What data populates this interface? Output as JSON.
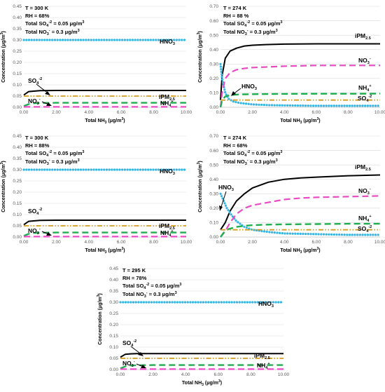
{
  "chart_data": [
    {
      "type": "line",
      "annotations": [
        "T = 300 K",
        "RH = 68%",
        "Total SO4-2 = 0.05 μg/m3",
        "Total NO3- = 0.3 μg/m3"
      ],
      "xlabel": "Total NH3 (μg/m3)",
      "ylabel": "Concentration (μg/m3)",
      "xlim": [
        0,
        10
      ],
      "ylim": [
        0,
        0.45
      ],
      "xticks": [
        "0.00",
        "2.00",
        "4.00",
        "6.00",
        "8.00",
        "10.00"
      ],
      "yticks": [
        "0.00",
        "0.05",
        "0.10",
        "0.15",
        "0.20",
        "0.25",
        "0.30",
        "0.35",
        "0.40",
        "0.45"
      ],
      "series": [
        {
          "name": "iPM2.5",
          "x": [
            0,
            0.3,
            0.6,
            1,
            2,
            4,
            6,
            8,
            10
          ],
          "values": [
            0.055,
            0.07,
            0.072,
            0.074,
            0.075,
            0.075,
            0.075,
            0.075,
            0.075
          ]
        },
        {
          "name": "HNO3",
          "x": [
            0,
            2,
            4,
            6,
            8,
            10
          ],
          "values": [
            0.3,
            0.3,
            0.3,
            0.3,
            0.3,
            0.3
          ]
        },
        {
          "name": "SO4-2",
          "x": [
            0,
            2,
            4,
            6,
            8,
            10
          ],
          "values": [
            0.05,
            0.05,
            0.05,
            0.05,
            0.05,
            0.05
          ]
        },
        {
          "name": "NH4+",
          "x": [
            0,
            0.3,
            0.6,
            1,
            2,
            4,
            6,
            8,
            10
          ],
          "values": [
            0.005,
            0.014,
            0.018,
            0.019,
            0.02,
            0.02,
            0.02,
            0.02,
            0.02
          ]
        },
        {
          "name": "NO3-",
          "x": [
            0,
            2,
            4,
            6,
            8,
            10
          ],
          "values": [
            0.002,
            0.002,
            0.002,
            0.002,
            0.002,
            0.002
          ]
        }
      ]
    },
    {
      "type": "line",
      "annotations": [
        "T = 274 K",
        "RH = 88 %",
        "Total SO4-2 = 0.05 μg/m3",
        "Total NO3- = 0.3 μg/m3"
      ],
      "xlabel": "Total NH3 (μg/m3)",
      "ylabel": "Concentration (μg/m3)",
      "xlim": [
        0,
        10
      ],
      "ylim": [
        0,
        0.7
      ],
      "xticks": [
        "0.00",
        "2.00",
        "4.00",
        "6.00",
        "8.00",
        "10.00"
      ],
      "yticks": [
        "0.00",
        "0.10",
        "0.20",
        "0.30",
        "0.40",
        "0.50",
        "0.60",
        "0.70"
      ],
      "series": [
        {
          "name": "iPM2.5",
          "x": [
            0,
            0.1,
            0.3,
            0.6,
            1,
            1.5,
            2,
            3,
            4,
            6,
            8,
            10
          ],
          "values": [
            0.05,
            0.22,
            0.34,
            0.39,
            0.41,
            0.425,
            0.43,
            0.435,
            0.438,
            0.44,
            0.44,
            0.44
          ]
        },
        {
          "name": "HNO3",
          "x": [
            0,
            0.1,
            0.3,
            0.5,
            0.8,
            1.2,
            2,
            3,
            4,
            6,
            8,
            10
          ],
          "values": [
            0.3,
            0.2,
            0.1,
            0.06,
            0.04,
            0.03,
            0.02,
            0.015,
            0.013,
            0.01,
            0.01,
            0.01
          ]
        },
        {
          "name": "NO3-",
          "x": [
            0,
            0.1,
            0.3,
            0.6,
            1,
            1.5,
            2,
            3,
            4,
            6,
            8,
            10
          ],
          "values": [
            0,
            0.1,
            0.2,
            0.24,
            0.26,
            0.27,
            0.275,
            0.28,
            0.285,
            0.29,
            0.29,
            0.29
          ]
        },
        {
          "name": "NH4+",
          "x": [
            0,
            0.1,
            0.3,
            0.6,
            1,
            1.5,
            2,
            3,
            4,
            6,
            8,
            10
          ],
          "values": [
            0,
            0.05,
            0.075,
            0.085,
            0.088,
            0.09,
            0.091,
            0.092,
            0.093,
            0.094,
            0.094,
            0.095
          ]
        },
        {
          "name": "SO4-2",
          "x": [
            0,
            2,
            4,
            6,
            8,
            10
          ],
          "values": [
            0.05,
            0.05,
            0.05,
            0.05,
            0.05,
            0.05
          ]
        }
      ]
    },
    {
      "type": "line",
      "annotations": [
        "T = 300 K",
        "RH = 88%",
        "Total SO4-2 = 0.05 μg/m3",
        "Total NO3- = 0.3 μg/m3"
      ],
      "xlabel": "Total NH3 (μg/m3)",
      "ylabel": "Concentration (μg/m3)",
      "xlim": [
        0,
        10
      ],
      "ylim": [
        0,
        0.45
      ],
      "xticks": [
        "0.00",
        "2.00",
        "4.00",
        "6.00",
        "8.00",
        "10.00"
      ],
      "yticks": [
        "0.00",
        "0.05",
        "0.10",
        "0.15",
        "0.20",
        "0.25",
        "0.30",
        "0.35",
        "0.40",
        "0.45"
      ],
      "series": [
        {
          "name": "iPM2.5",
          "x": [
            0,
            0.3,
            0.6,
            1,
            2,
            4,
            6,
            8,
            10
          ],
          "values": [
            0.055,
            0.07,
            0.072,
            0.074,
            0.075,
            0.075,
            0.075,
            0.075,
            0.075
          ]
        },
        {
          "name": "HNO3",
          "x": [
            0,
            2,
            4,
            6,
            8,
            10
          ],
          "values": [
            0.3,
            0.3,
            0.3,
            0.3,
            0.3,
            0.3
          ]
        },
        {
          "name": "SO4-2",
          "x": [
            0,
            2,
            4,
            6,
            8,
            10
          ],
          "values": [
            0.05,
            0.05,
            0.05,
            0.05,
            0.05,
            0.05
          ]
        },
        {
          "name": "NH4+",
          "x": [
            0,
            0.3,
            0.6,
            1,
            2,
            4,
            6,
            8,
            10
          ],
          "values": [
            0.005,
            0.014,
            0.018,
            0.019,
            0.02,
            0.02,
            0.02,
            0.02,
            0.02
          ]
        },
        {
          "name": "NO3-",
          "x": [
            0,
            2,
            4,
            6,
            8,
            10
          ],
          "values": [
            0.002,
            0.002,
            0.002,
            0.002,
            0.002,
            0.002
          ]
        }
      ]
    },
    {
      "type": "line",
      "annotations": [
        "T = 274 K",
        "RH = 68%",
        "Total SO4-2 = 0.05 μg/m3",
        "Total NO3- = 0.3 μg/m3"
      ],
      "xlabel": "Total NH3 (μg/m3)",
      "ylabel": "Concentration (μg/m3)",
      "xlim": [
        0,
        10
      ],
      "ylim": [
        0,
        0.7
      ],
      "xticks": [
        "0.00",
        "2.00",
        "4.00",
        "6.00",
        "8.00",
        "10.00"
      ],
      "yticks": [
        "0.00",
        "0.10",
        "0.20",
        "0.30",
        "0.40",
        "0.50",
        "0.60",
        "0.70"
      ],
      "series": [
        {
          "name": "iPM2.5",
          "x": [
            0,
            0.3,
            0.6,
            1,
            1.5,
            2,
            3,
            4,
            5,
            6,
            8,
            10
          ],
          "values": [
            0.05,
            0.1,
            0.18,
            0.25,
            0.3,
            0.34,
            0.38,
            0.4,
            0.41,
            0.415,
            0.425,
            0.43
          ]
        },
        {
          "name": "HNO3",
          "x": [
            0,
            0.2,
            0.4,
            0.7,
            1,
            1.5,
            2,
            3,
            4,
            6,
            8,
            10
          ],
          "values": [
            0.3,
            0.25,
            0.2,
            0.15,
            0.11,
            0.07,
            0.05,
            0.035,
            0.025,
            0.02,
            0.015,
            0.015
          ]
        },
        {
          "name": "NO3-",
          "x": [
            0,
            0.3,
            0.6,
            1,
            1.5,
            2,
            3,
            4,
            5,
            6,
            8,
            10
          ],
          "values": [
            0,
            0.04,
            0.1,
            0.16,
            0.2,
            0.22,
            0.24,
            0.26,
            0.27,
            0.275,
            0.28,
            0.285
          ]
        },
        {
          "name": "NH4+",
          "x": [
            0,
            0.2,
            0.5,
            1,
            1.5,
            2,
            3,
            4,
            6,
            8,
            10
          ],
          "values": [
            0,
            0.03,
            0.055,
            0.07,
            0.078,
            0.082,
            0.086,
            0.088,
            0.09,
            0.092,
            0.092
          ]
        },
        {
          "name": "SO4-2",
          "x": [
            0,
            2,
            4,
            6,
            8,
            10
          ],
          "values": [
            0.05,
            0.05,
            0.05,
            0.05,
            0.05,
            0.05
          ]
        }
      ]
    },
    {
      "type": "line",
      "annotations": [
        "T = 295 K",
        "RH = 78%",
        "Total SO4-2 = 0.05 μg/m3",
        "Total NO3- = 0.3 μg/m3"
      ],
      "xlabel": "Total NH3 (μg/m3)",
      "ylabel": "Concentration (μg/m3)",
      "xlim": [
        0,
        10
      ],
      "ylim": [
        0,
        0.45
      ],
      "xticks": [
        "0.00",
        "2.00",
        "4.00",
        "6.00",
        "8.00",
        "10.00"
      ],
      "yticks": [
        "0.00",
        "0.05",
        "0.10",
        "0.15",
        "0.20",
        "0.25",
        "0.30",
        "0.35",
        "0.40",
        "0.45"
      ],
      "series": [
        {
          "name": "iPM2.5",
          "x": [
            0,
            0.3,
            0.6,
            1,
            2,
            4,
            6,
            8,
            10
          ],
          "values": [
            0.055,
            0.068,
            0.07,
            0.071,
            0.071,
            0.071,
            0.071,
            0.071,
            0.071
          ]
        },
        {
          "name": "HNO3",
          "x": [
            0,
            2,
            4,
            6,
            8,
            10
          ],
          "values": [
            0.3,
            0.3,
            0.3,
            0.3,
            0.3,
            0.3
          ]
        },
        {
          "name": "SO4-2",
          "x": [
            0,
            2,
            4,
            6,
            8,
            10
          ],
          "values": [
            0.05,
            0.05,
            0.05,
            0.05,
            0.05,
            0.05
          ]
        },
        {
          "name": "NH4+",
          "x": [
            0,
            0.3,
            0.6,
            1,
            2,
            4,
            6,
            8,
            10
          ],
          "values": [
            0.005,
            0.014,
            0.018,
            0.019,
            0.02,
            0.02,
            0.02,
            0.02,
            0.02
          ]
        },
        {
          "name": "NO3-",
          "x": [
            0,
            2,
            4,
            6,
            8,
            10
          ],
          "values": [
            0.002,
            0.002,
            0.002,
            0.002,
            0.002,
            0.002
          ]
        }
      ]
    }
  ],
  "series_styles": {
    "iPM2.5": {
      "color": "#000000",
      "dash": "",
      "width": 2
    },
    "HNO3": {
      "color": "#33b5e5",
      "dash": "0.1 3.6",
      "width": 3.2
    },
    "NO3-": {
      "color": "#e84bc4",
      "dash": "9 5",
      "width": 2.2
    },
    "NH4+": {
      "color": "#1fae4f",
      "dash": "9 5",
      "width": 2.4
    },
    "SO4-2": {
      "color": "#d59a1f",
      "dash": "7 2.5 1.5 2.5 1.5 2.5",
      "width": 1.8
    }
  }
}
